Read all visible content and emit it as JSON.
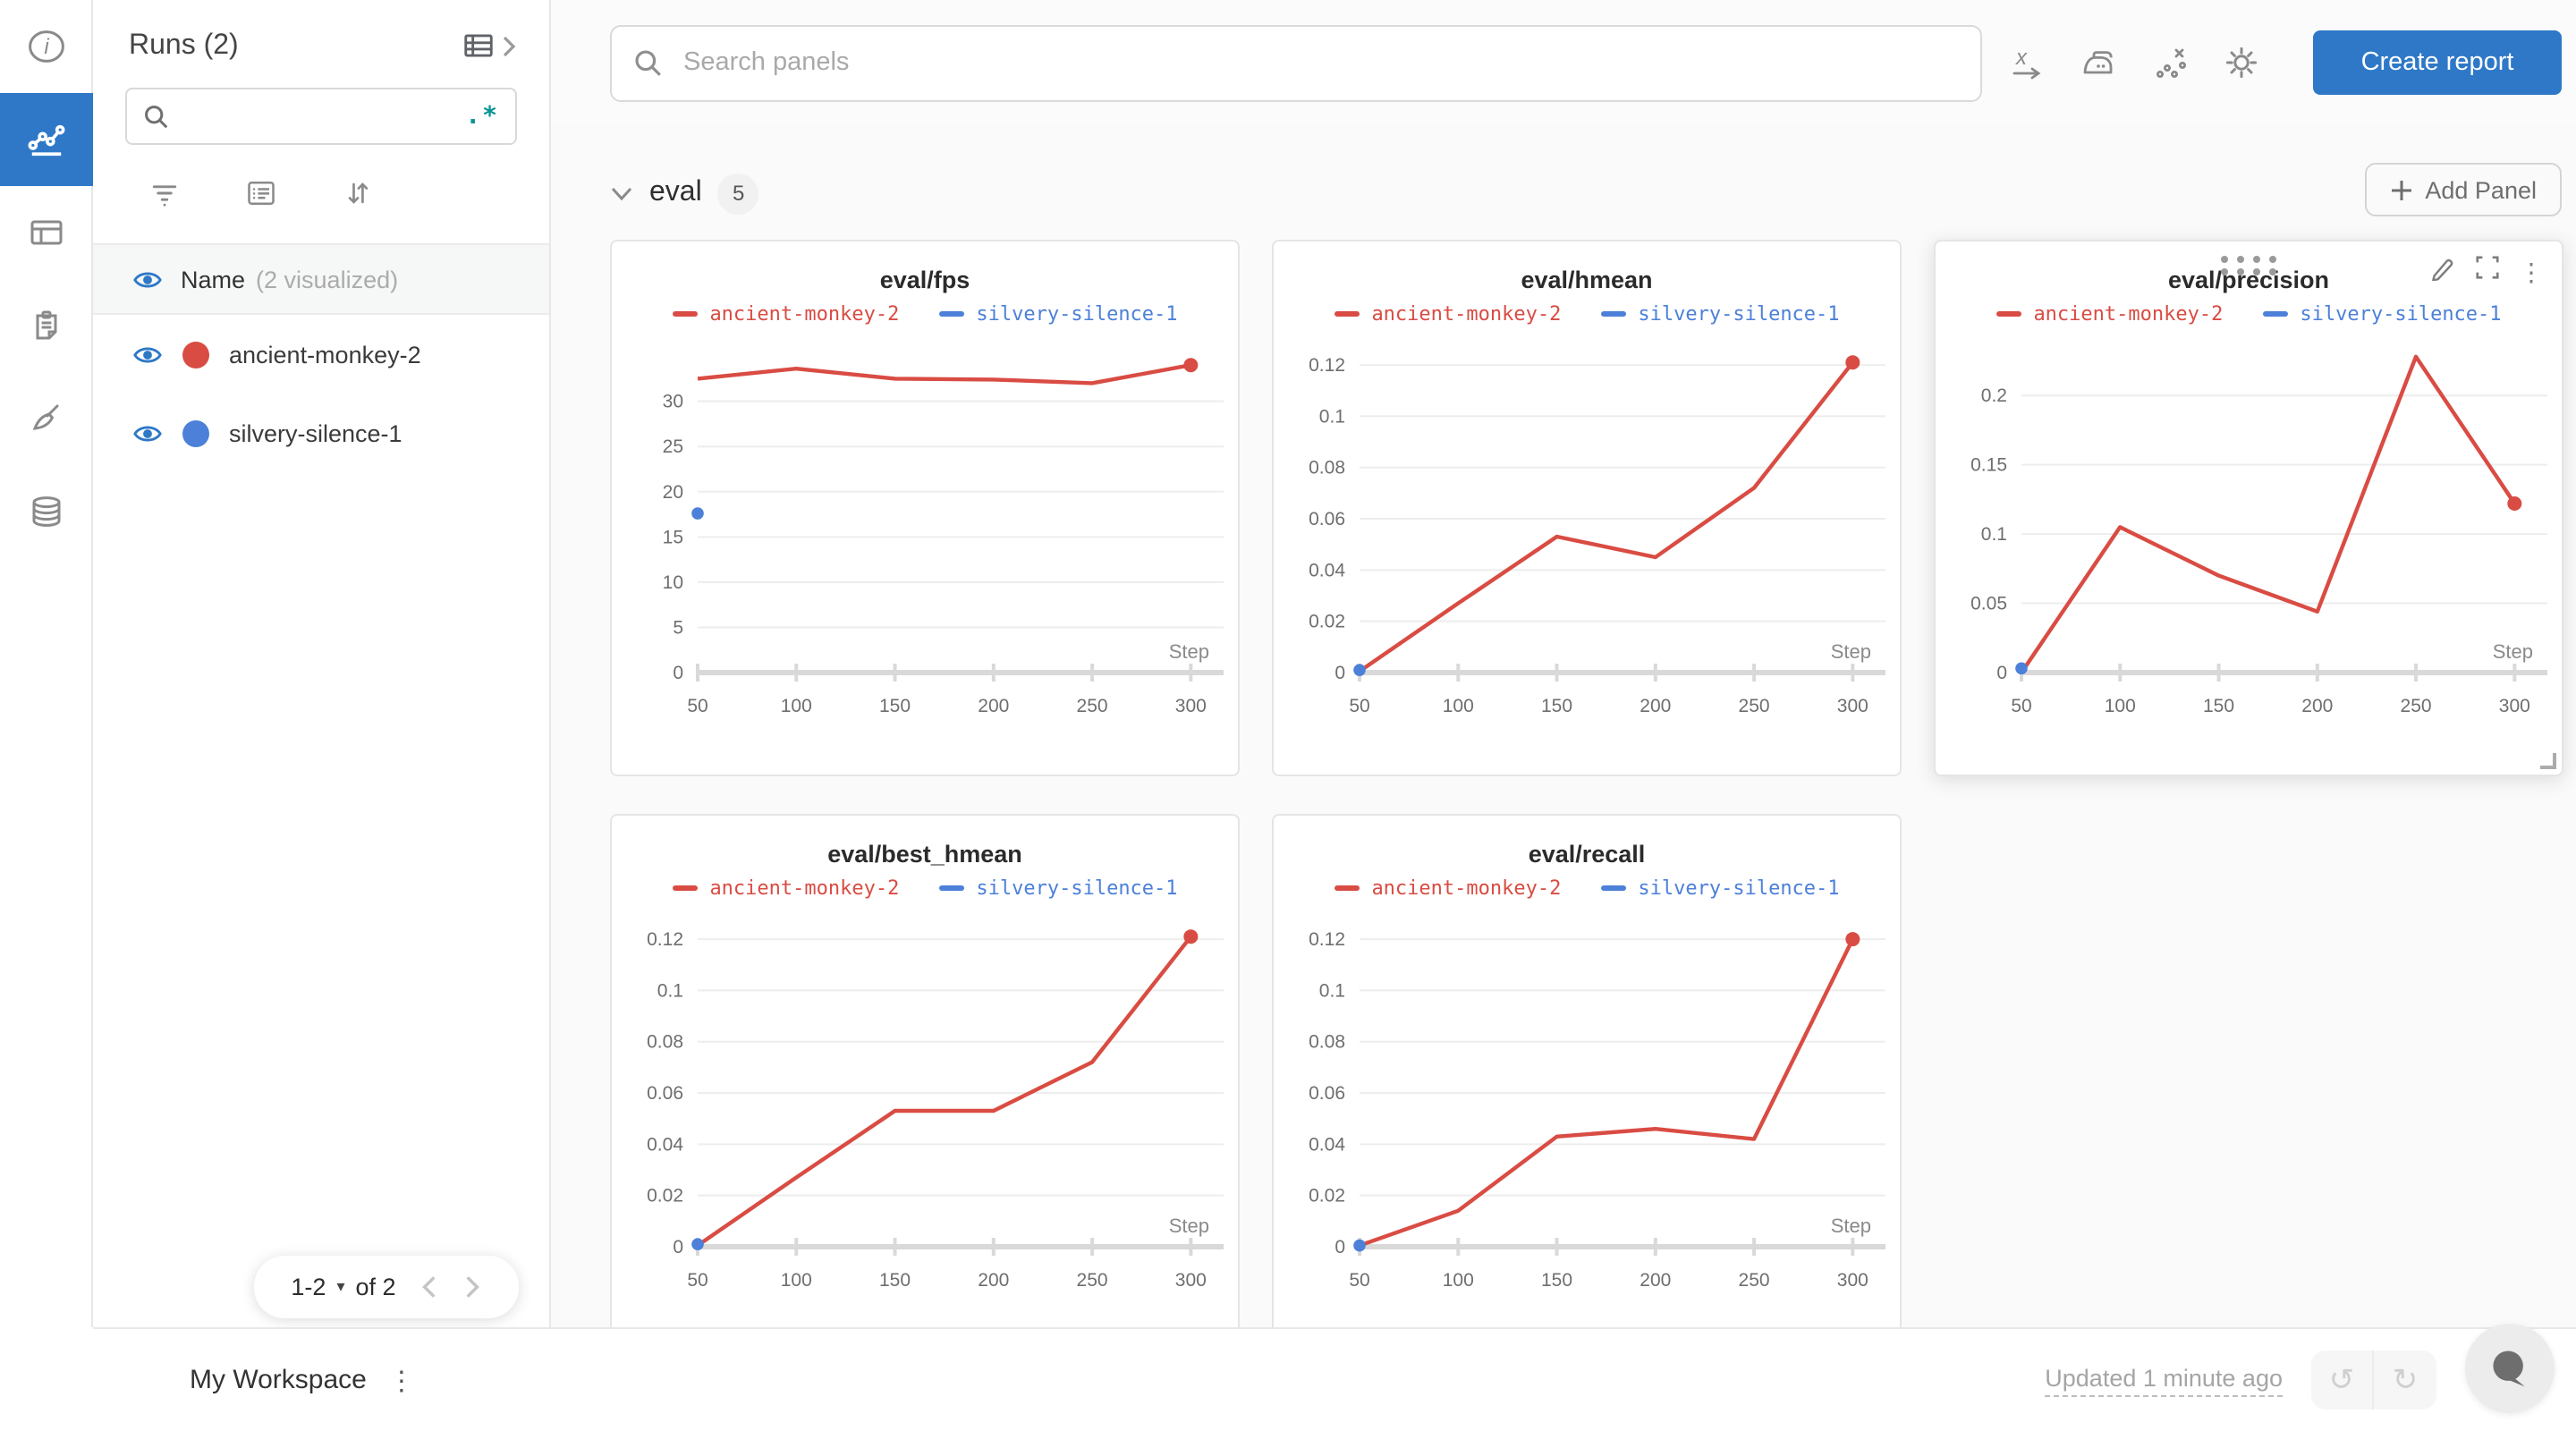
{
  "colors": {
    "accent_blue": "#2e78c7",
    "run_red": "#d94c43",
    "run_blue": "#4c80d9",
    "regex_teal": "#0a9494"
  },
  "rail": {
    "icons": [
      "info",
      "line-chart",
      "table",
      "clipboard",
      "broom",
      "database"
    ],
    "active_icon": "line-chart"
  },
  "runs_panel": {
    "title": "Runs (2)",
    "search": {
      "value": "",
      "regex_hint": ".*"
    },
    "filter_icons": [
      "filter",
      "list",
      "sort"
    ],
    "header": {
      "label": "Name",
      "sublabel": "(2 visualized)"
    },
    "runs": [
      {
        "name": "ancient-monkey-2",
        "color": "#d94c43",
        "visible": true
      },
      {
        "name": "silvery-silence-1",
        "color": "#4c80d9",
        "visible": true
      }
    ],
    "pagination": {
      "range_label": "1-2",
      "of_label": "of 2"
    }
  },
  "toolbar": {
    "search_placeholder": "Search panels",
    "icons": [
      "x-axis",
      "smoothing-iron",
      "outlier-scatter",
      "settings-gear"
    ],
    "create_report_label": "Create report"
  },
  "section": {
    "name": "eval",
    "count": "5",
    "add_panel_label": "Add Panel"
  },
  "footer": {
    "workspace_label": "My Workspace",
    "updated_label": "Updated 1 minute ago"
  },
  "chart_data": [
    {
      "type": "line",
      "title": "eval/fps",
      "xlabel": "Step",
      "x": [
        50,
        100,
        150,
        200,
        250,
        300
      ],
      "yticks": [
        0,
        5,
        10,
        15,
        20,
        25,
        30
      ],
      "ylim": [
        0,
        36
      ],
      "xlim": [
        50,
        313
      ],
      "series": [
        {
          "name": "ancient-monkey-2",
          "color": "#d94c43",
          "values": [
            32.5,
            33.6,
            32.5,
            32.4,
            32.0,
            34.0
          ]
        },
        {
          "name": "silvery-silence-1",
          "color": "#4c80d9",
          "point_only": true,
          "values": [
            17.6,
            null,
            null,
            null,
            null,
            null
          ]
        }
      ]
    },
    {
      "type": "line",
      "title": "eval/hmean",
      "xlabel": "Step",
      "x": [
        50,
        100,
        150,
        200,
        250,
        300
      ],
      "yticks": [
        0,
        0.02,
        0.04,
        0.06,
        0.08,
        0.1,
        0.12
      ],
      "ylim": [
        0,
        0.127
      ],
      "xlim": [
        50,
        313
      ],
      "series": [
        {
          "name": "ancient-monkey-2",
          "color": "#d94c43",
          "values": [
            0.0005,
            0.027,
            0.053,
            0.045,
            0.072,
            0.121
          ]
        },
        {
          "name": "silvery-silence-1",
          "color": "#4c80d9",
          "point_only": true,
          "values": [
            0.001,
            null,
            null,
            null,
            null,
            null
          ]
        }
      ]
    },
    {
      "type": "line",
      "title": "eval/precision",
      "xlabel": "Step",
      "x": [
        50,
        100,
        150,
        200,
        250,
        300
      ],
      "yticks": [
        0,
        0.05,
        0.1,
        0.15,
        0.2
      ],
      "ylim": [
        0,
        0.235
      ],
      "xlim": [
        50,
        313
      ],
      "show_controls": true,
      "series": [
        {
          "name": "ancient-monkey-2",
          "color": "#d94c43",
          "values": [
            0.0,
            0.105,
            0.07,
            0.044,
            0.228,
            0.122
          ]
        },
        {
          "name": "silvery-silence-1",
          "color": "#4c80d9",
          "point_only": true,
          "values": [
            0.003,
            null,
            null,
            null,
            null,
            null
          ]
        }
      ]
    },
    {
      "type": "line",
      "title": "eval/best_hmean",
      "xlabel": "Step",
      "x": [
        50,
        100,
        150,
        200,
        250,
        300
      ],
      "yticks": [
        0,
        0.02,
        0.04,
        0.06,
        0.08,
        0.1,
        0.12
      ],
      "ylim": [
        0,
        0.127
      ],
      "xlim": [
        50,
        313
      ],
      "series": [
        {
          "name": "ancient-monkey-2",
          "color": "#d94c43",
          "values": [
            0.0005,
            0.027,
            0.053,
            0.053,
            0.072,
            0.121
          ]
        },
        {
          "name": "silvery-silence-1",
          "color": "#4c80d9",
          "point_only": true,
          "values": [
            0.001,
            null,
            null,
            null,
            null,
            null
          ]
        }
      ]
    },
    {
      "type": "line",
      "title": "eval/recall",
      "xlabel": "Step",
      "x": [
        50,
        100,
        150,
        200,
        250,
        300
      ],
      "yticks": [
        0,
        0.02,
        0.04,
        0.06,
        0.08,
        0.1,
        0.12
      ],
      "ylim": [
        0,
        0.127
      ],
      "xlim": [
        50,
        313
      ],
      "series": [
        {
          "name": "ancient-monkey-2",
          "color": "#d94c43",
          "values": [
            0.0005,
            0.014,
            0.043,
            0.046,
            0.042,
            0.12
          ]
        },
        {
          "name": "silvery-silence-1",
          "color": "#4c80d9",
          "point_only": true,
          "values": [
            0.0005,
            null,
            null,
            null,
            null,
            null
          ]
        }
      ]
    }
  ]
}
